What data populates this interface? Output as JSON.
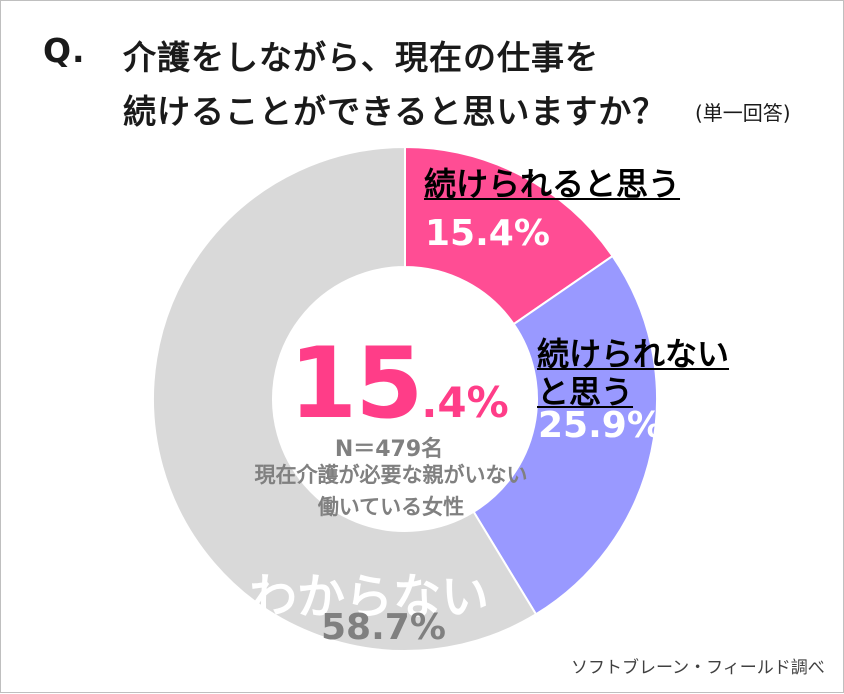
{
  "title": {
    "prefix": "Q.",
    "line1": "介護をしながら、現在の仕事を",
    "line2": "続けることができると思いますか？",
    "note": "(単一回答)"
  },
  "center": {
    "big": "15",
    "small": ".4%",
    "sample": "N＝479名",
    "line1": "現在介護が必要な親がいない",
    "line2": "働いている女性"
  },
  "source": "ソフトブレーン・フィールド調べ",
  "colors": {
    "pink": "#ff4d94",
    "purple": "#9999ff",
    "gray": "#d9d9d9",
    "center_pink": "#ff3d88"
  },
  "chart_data": {
    "type": "pie",
    "style": "donut",
    "categories": [
      "続けられると思う",
      "続けられないと思う",
      "わからない"
    ],
    "values": [
      15.4,
      25.9,
      58.7
    ],
    "value_labels": [
      "15.4%",
      "25.9%",
      "58.7%"
    ],
    "label_lines": [
      [
        "続けられると思う"
      ],
      [
        "続けられない",
        "と思う"
      ],
      [
        "わからない"
      ]
    ],
    "colors": [
      "#ff4d94",
      "#9999ff",
      "#d9d9d9"
    ],
    "unit": "%"
  }
}
